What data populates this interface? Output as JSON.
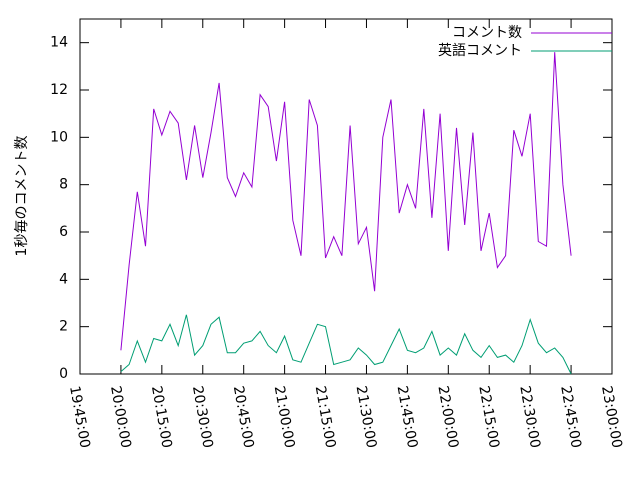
{
  "chart_data": {
    "type": "line",
    "ylabel": "1秒毎のコメント数",
    "x": [
      "20:00:00",
      "20:03:00",
      "20:06:00",
      "20:09:00",
      "20:12:00",
      "20:15:00",
      "20:18:00",
      "20:21:00",
      "20:24:00",
      "20:27:00",
      "20:30:00",
      "20:33:00",
      "20:36:00",
      "20:39:00",
      "20:42:00",
      "20:45:00",
      "20:48:00",
      "20:51:00",
      "20:54:00",
      "20:57:00",
      "21:00:00",
      "21:03:00",
      "21:06:00",
      "21:09:00",
      "21:12:00",
      "21:15:00",
      "21:18:00",
      "21:21:00",
      "21:24:00",
      "21:27:00",
      "21:30:00",
      "21:33:00",
      "21:36:00",
      "21:39:00",
      "21:42:00",
      "21:45:00",
      "21:48:00",
      "21:51:00",
      "21:54:00",
      "21:57:00",
      "22:00:00",
      "22:03:00",
      "22:06:00",
      "22:09:00",
      "22:12:00",
      "22:15:00",
      "22:18:00",
      "22:21:00",
      "22:24:00",
      "22:27:00",
      "22:30:00",
      "22:33:00",
      "22:36:00",
      "22:39:00",
      "22:42:00",
      "22:45:00"
    ],
    "series": [
      {
        "name": "コメント数",
        "color": "#9400d3",
        "values": [
          1.0,
          4.6,
          7.7,
          5.4,
          11.2,
          10.1,
          11.1,
          10.6,
          8.2,
          10.5,
          8.3,
          10.2,
          12.3,
          8.3,
          7.5,
          8.5,
          7.9,
          11.8,
          11.3,
          9.0,
          11.5,
          6.5,
          5.0,
          11.6,
          10.5,
          4.9,
          5.8,
          5.0,
          10.5,
          5.5,
          6.2,
          3.5,
          10.0,
          11.6,
          6.8,
          8.0,
          7.0,
          11.2,
          6.6,
          11.0,
          5.2,
          10.4,
          6.3,
          10.2,
          5.2,
          6.8,
          4.5,
          5.0,
          10.3,
          9.2,
          11.0,
          5.6,
          5.4,
          13.6,
          8.0,
          5.0
        ]
      },
      {
        "name": "英語コメント",
        "color": "#009e73",
        "values": [
          0.1,
          0.4,
          1.4,
          0.5,
          1.5,
          1.4,
          2.1,
          1.2,
          2.5,
          0.8,
          1.2,
          2.1,
          2.4,
          0.9,
          0.9,
          1.3,
          1.4,
          1.8,
          1.2,
          0.9,
          1.6,
          0.6,
          0.5,
          1.3,
          2.1,
          2.0,
          0.4,
          0.5,
          0.6,
          1.1,
          0.8,
          0.4,
          0.5,
          1.2,
          1.9,
          1.0,
          0.9,
          1.1,
          1.8,
          0.8,
          1.1,
          0.8,
          1.7,
          1.0,
          0.7,
          1.2,
          0.7,
          0.8,
          0.5,
          1.2,
          2.3,
          1.3,
          0.9,
          1.1,
          0.7,
          0.0
        ]
      }
    ],
    "xlim": [
      "19:45:00",
      "23:00:00"
    ],
    "xticks": [
      "19:45:00",
      "20:00:00",
      "20:15:00",
      "20:30:00",
      "20:45:00",
      "21:00:00",
      "21:15:00",
      "21:30:00",
      "21:45:00",
      "22:00:00",
      "22:15:00",
      "22:30:00",
      "22:45:00",
      "23:00:00"
    ],
    "ylim": [
      0,
      15
    ],
    "yticks": [
      0,
      2,
      4,
      6,
      8,
      10,
      12,
      14
    ],
    "legend": "upper right"
  }
}
